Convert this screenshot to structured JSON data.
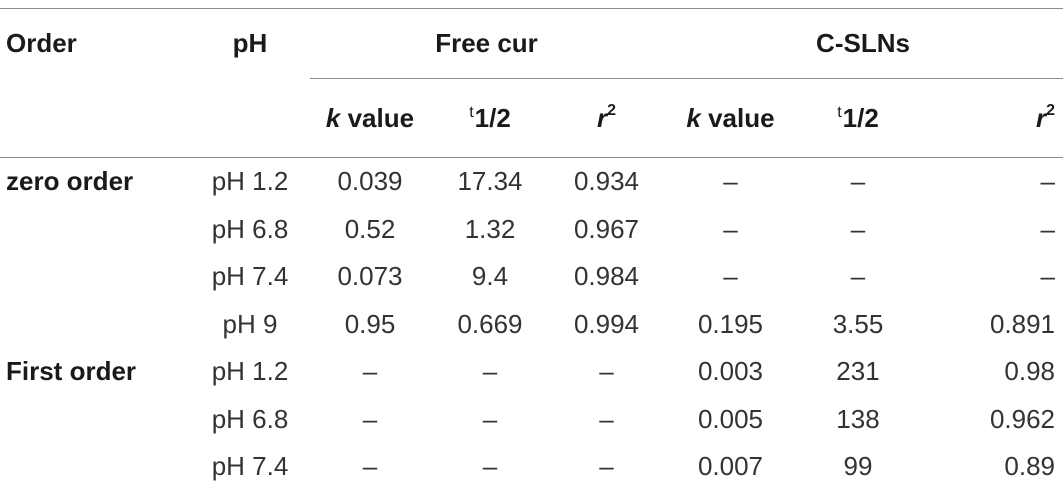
{
  "table": {
    "headers": {
      "order": "Order",
      "ph": "pH",
      "group_free": "Free cur",
      "group_csln": "C-SLNs",
      "k_letter": "k",
      "k_word": "value",
      "t_sup": "t",
      "t_main": "1/2",
      "r_letter": "r",
      "r_sup": "2"
    },
    "rows": [
      {
        "order": "zero order",
        "ph": "pH 1.2",
        "vals": [
          "0.039",
          "17.34",
          "0.934",
          "–",
          "–",
          "–"
        ]
      },
      {
        "order": "",
        "ph": "pH 6.8",
        "vals": [
          "0.52",
          "1.32",
          "0.967",
          "–",
          "–",
          "–"
        ]
      },
      {
        "order": "",
        "ph": "pH 7.4",
        "vals": [
          "0.073",
          "9.4",
          "0.984",
          "–",
          "–",
          "–"
        ]
      },
      {
        "order": "",
        "ph": "pH 9",
        "vals": [
          "0.95",
          "0.669",
          "0.994",
          "0.195",
          "3.55",
          "0.891"
        ]
      },
      {
        "order": "First order",
        "ph": "pH 1.2",
        "vals": [
          "–",
          "–",
          "–",
          "0.003",
          "231",
          "0.98"
        ]
      },
      {
        "order": "",
        "ph": "pH 6.8",
        "vals": [
          "–",
          "–",
          "–",
          "0.005",
          "138",
          "0.962"
        ]
      },
      {
        "order": "",
        "ph": "pH 7.4",
        "vals": [
          "–",
          "–",
          "–",
          "0.007",
          "99",
          "0.89"
        ]
      }
    ]
  }
}
